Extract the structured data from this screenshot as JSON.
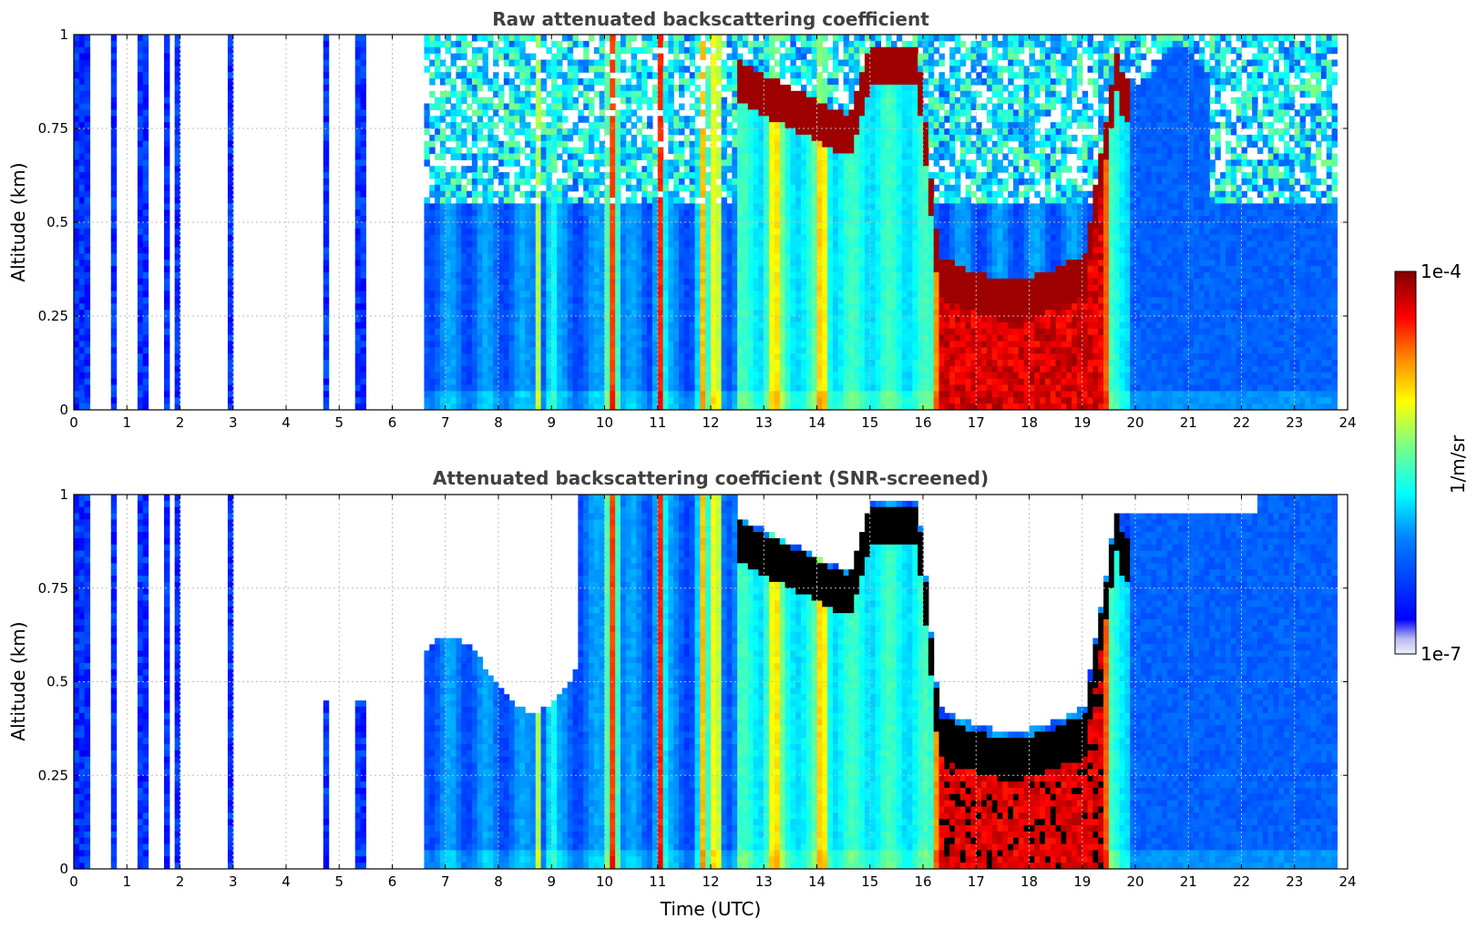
{
  "chart_data": [
    {
      "type": "heatmap",
      "title": "Raw attenuated backscattering coefficient",
      "xlabel": "",
      "ylabel": "Altitude (km)",
      "xlim": [
        0,
        24
      ],
      "ylim": [
        0,
        1
      ],
      "xticks": [
        "0",
        "1",
        "2",
        "3",
        "4",
        "5",
        "6",
        "7",
        "8",
        "9",
        "10",
        "11",
        "12",
        "13",
        "14",
        "15",
        "16",
        "17",
        "18",
        "19",
        "20",
        "21",
        "22",
        "23",
        "24"
      ],
      "yticks": [
        "0",
        "0.25",
        "0.5",
        "0.75",
        "1"
      ],
      "grid": true,
      "screened": false
    },
    {
      "type": "heatmap",
      "title": "Attenuated backscattering coefficient (SNR-screened)",
      "xlabel": "Time (UTC)",
      "ylabel": "Altitude (km)",
      "xlim": [
        0,
        24
      ],
      "ylim": [
        0,
        1
      ],
      "xticks": [
        "0",
        "1",
        "2",
        "3",
        "4",
        "5",
        "6",
        "7",
        "8",
        "9",
        "10",
        "11",
        "12",
        "13",
        "14",
        "15",
        "16",
        "17",
        "18",
        "19",
        "20",
        "21",
        "22",
        "23",
        "24"
      ],
      "yticks": [
        "0",
        "0.25",
        "0.5",
        "0.75",
        "1"
      ],
      "grid": true,
      "screened": true
    }
  ],
  "colorbar": {
    "label": "1/m/sr",
    "max_label": "1e-4",
    "min_label": "1e-7",
    "colormap": "jet",
    "scale": "log"
  },
  "data_gaps_utc": [
    [
      0.35,
      0.72
    ],
    [
      0.77,
      1.25
    ],
    [
      1.36,
      1.75
    ],
    [
      1.8,
      1.88
    ],
    [
      2.0,
      2.87
    ],
    [
      2.95,
      4.75
    ],
    [
      4.85,
      5.35
    ],
    [
      5.5,
      6.58
    ],
    [
      23.8,
      24
    ]
  ]
}
